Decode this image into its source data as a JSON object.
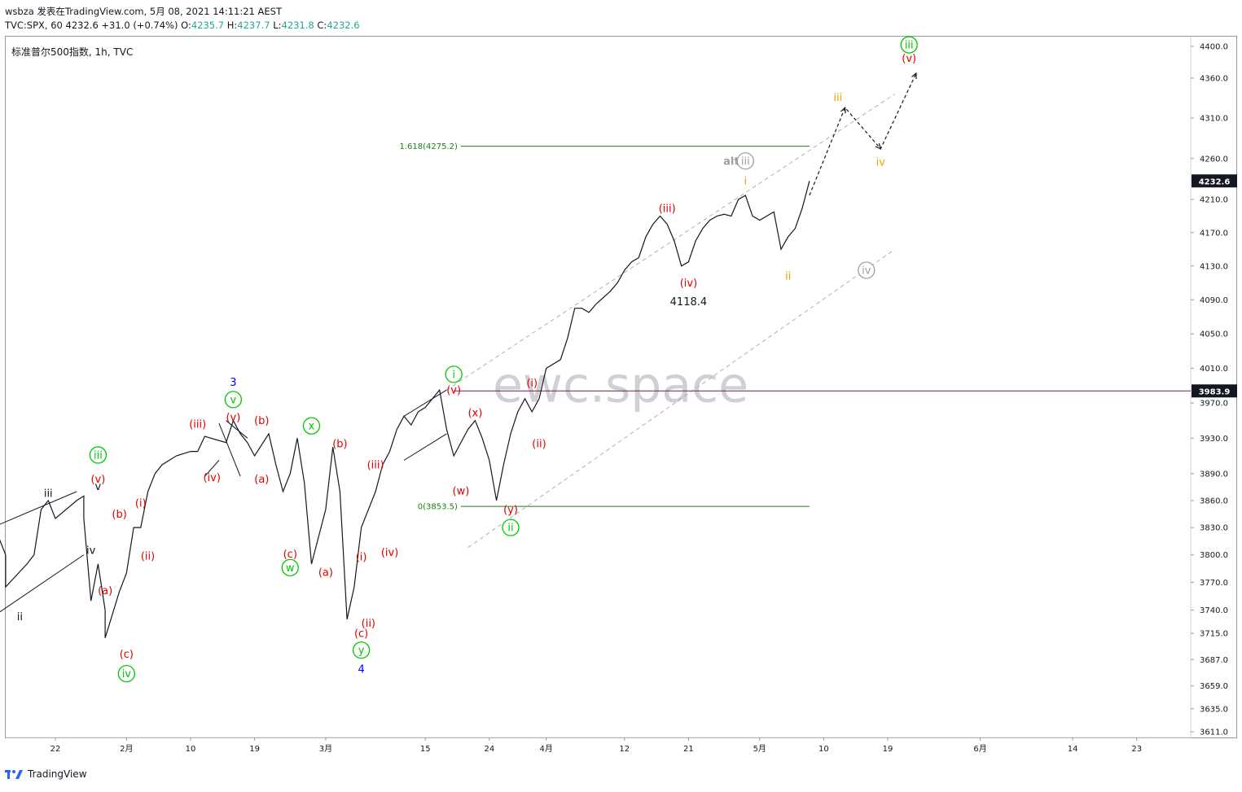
{
  "header": {
    "line1": "wsbza 发表在TradingView.com, 5月 08, 2021 14:11:21 AEST",
    "symbol_interval": "TVC:SPX, 60",
    "last": "4232.6",
    "change": "+31.0 (+0.74%)",
    "o_label": "O:",
    "o_value": "4235.7",
    "h_label": "H:",
    "h_value": "4237.7",
    "l_label": "L:",
    "l_value": "4231.8",
    "c_label": "C:",
    "c_value": "4232.6"
  },
  "legend": "标准普尔500指数, 1h, TVC",
  "watermark": "ewc.space",
  "footer": {
    "brand": "TradingView"
  },
  "colors": {
    "green": "#00c800",
    "red": "#e00000",
    "blue": "#0000ff",
    "orange": "#f0a000",
    "gray": "#a0a0a0",
    "dark": "#131722",
    "fib": "#1b7d1b",
    "level": "#7b1a4b"
  },
  "chart_data": {
    "type": "line",
    "title": "",
    "xlabel": "",
    "ylabel": "",
    "ylim": [
      3590,
      4420
    ],
    "grid": false,
    "y_ticks": [
      3611.0,
      3635.0,
      3659.0,
      3687.0,
      3715.0,
      3740.0,
      3770.0,
      3800.0,
      3830.0,
      3860.0,
      3890.0,
      3930.0,
      3970.0,
      4010.0,
      4050.0,
      4090.0,
      4130.0,
      4170.0,
      4210.0,
      4260.0,
      4310.0,
      4360.0,
      4400.0
    ],
    "x_ticks": [
      "22",
      "2月",
      "10",
      "19",
      "3月",
      "15",
      "24",
      "4月",
      "12",
      "21",
      "5月",
      "10",
      "19",
      "6月",
      "14",
      "23"
    ],
    "price_badges": [
      {
        "value": "4232.6",
        "price": 4232.6,
        "bg": "#131722"
      },
      {
        "value": "3983.9",
        "price": 3983.9,
        "bg": "#131722"
      }
    ],
    "horizontal_levels": [
      {
        "label": "1.618(4275.2)",
        "price": 4275.2,
        "color": "#1b7d1b"
      },
      {
        "label": "0(3853.5)",
        "price": 3853.5,
        "color": "#1b7d1b"
      },
      {
        "label": "",
        "price": 3983.9,
        "color": "#7b1a4b"
      }
    ],
    "price_path": [
      [
        "01-14",
        3820
      ],
      [
        "01-15",
        3800
      ],
      [
        "01-15",
        3765
      ],
      [
        "01-18",
        3790
      ],
      [
        "01-19",
        3800
      ],
      [
        "01-20",
        3850
      ],
      [
        "01-21",
        3860
      ],
      [
        "01-22",
        3840
      ],
      [
        "01-25",
        3860
      ],
      [
        "01-26",
        3865
      ],
      [
        "01-26",
        3840
      ],
      [
        "01-27",
        3750
      ],
      [
        "01-28",
        3790
      ],
      [
        "01-29",
        3740
      ],
      [
        "01-29",
        3710
      ],
      [
        "01-31",
        3760
      ],
      [
        "02-01",
        3780
      ],
      [
        "02-02",
        3830
      ],
      [
        "02-03",
        3830
      ],
      [
        "02-04",
        3870
      ],
      [
        "02-05",
        3890
      ],
      [
        "02-06",
        3900
      ],
      [
        "02-08",
        3910
      ],
      [
        "02-10",
        3915
      ],
      [
        "02-11",
        3915
      ],
      [
        "02-12",
        3932
      ],
      [
        "02-15",
        3925
      ],
      [
        "02-16",
        3950
      ],
      [
        "02-17",
        3935
      ],
      [
        "02-18",
        3925
      ],
      [
        "02-19",
        3910
      ],
      [
        "02-21",
        3935
      ],
      [
        "02-22",
        3900
      ],
      [
        "02-23",
        3870
      ],
      [
        "02-24",
        3890
      ],
      [
        "02-25",
        3930
      ],
      [
        "02-26",
        3880
      ],
      [
        "02-27",
        3790
      ],
      [
        "03-01",
        3850
      ],
      [
        "03-02",
        3920
      ],
      [
        "03-03",
        3870
      ],
      [
        "03-04",
        3730
      ],
      [
        "03-05",
        3765
      ],
      [
        "03-06",
        3830
      ],
      [
        "03-08",
        3870
      ],
      [
        "03-09",
        3900
      ],
      [
        "03-10",
        3915
      ],
      [
        "03-11",
        3940
      ],
      [
        "03-12",
        3955
      ],
      [
        "03-13",
        3945
      ],
      [
        "03-14",
        3960
      ],
      [
        "03-15",
        3965
      ],
      [
        "03-16",
        3975
      ],
      [
        "03-17",
        3985
      ],
      [
        "03-18",
        3940
      ],
      [
        "03-19",
        3910
      ],
      [
        "03-21",
        3940
      ],
      [
        "03-22",
        3950
      ],
      [
        "03-23",
        3930
      ],
      [
        "03-24",
        3905
      ],
      [
        "03-25",
        3860
      ],
      [
        "03-26",
        3900
      ],
      [
        "03-27",
        3935
      ],
      [
        "03-28",
        3960
      ],
      [
        "03-29",
        3975
      ],
      [
        "03-30",
        3960
      ],
      [
        "03-31",
        3975
      ],
      [
        "04-01",
        4010
      ],
      [
        "04-03",
        4020
      ],
      [
        "04-04",
        4045
      ],
      [
        "04-05",
        4080
      ],
      [
        "04-06",
        4080
      ],
      [
        "04-07",
        4075
      ],
      [
        "04-08",
        4085
      ],
      [
        "04-10",
        4100
      ],
      [
        "04-11",
        4110
      ],
      [
        "04-12",
        4125
      ],
      [
        "04-13",
        4135
      ],
      [
        "04-14",
        4140
      ],
      [
        "04-15",
        4165
      ],
      [
        "04-16",
        4180
      ],
      [
        "04-17",
        4190
      ],
      [
        "04-18",
        4180
      ],
      [
        "04-19",
        4160
      ],
      [
        "04-20",
        4130
      ],
      [
        "04-21",
        4135
      ],
      [
        "04-22",
        4160
      ],
      [
        "04-23",
        4175
      ],
      [
        "04-24",
        4185
      ],
      [
        "04-25",
        4190
      ],
      [
        "04-26",
        4192
      ],
      [
        "04-27",
        4190
      ],
      [
        "04-28",
        4210
      ],
      [
        "04-29",
        4215
      ],
      [
        "04-30",
        4190
      ],
      [
        "05-01",
        4185
      ],
      [
        "05-02",
        4190
      ],
      [
        "05-03",
        4195
      ],
      [
        "05-04",
        4150
      ],
      [
        "05-05",
        4165
      ],
      [
        "05-06",
        4175
      ],
      [
        "05-07",
        4200
      ],
      [
        "05-08",
        4232.6
      ]
    ],
    "projection": [
      [
        "05-08",
        4215
      ],
      [
        "05-13",
        4323
      ],
      [
        "05-18",
        4272
      ],
      [
        "05-23",
        4366
      ]
    ],
    "annotations": [
      {
        "text": "ii",
        "date": "01-17",
        "price": 3733,
        "color": "#131722"
      },
      {
        "text": "iii",
        "date": "01-21",
        "price": 3868,
        "color": "#131722"
      },
      {
        "text": "iv",
        "date": "01-27",
        "price": 3805,
        "color": "#131722"
      },
      {
        "text": "v",
        "date": "01-28",
        "price": 3876,
        "color": "#131722"
      },
      {
        "text": "iii",
        "date": "01-28",
        "price": 3911,
        "color": "#00c800",
        "circle": true
      },
      {
        "text": "(v)",
        "date": "01-28",
        "price": 3884,
        "color": "#e00000"
      },
      {
        "text": "(b)",
        "date": "01-31",
        "price": 3845,
        "color": "#e00000"
      },
      {
        "text": "(a)",
        "date": "01-29",
        "price": 3761,
        "color": "#e00000"
      },
      {
        "text": "(c)",
        "date": "02-01",
        "price": 3693,
        "color": "#e00000"
      },
      {
        "text": "iv",
        "date": "02-01",
        "price": 3672,
        "color": "#00c800",
        "circle": true
      },
      {
        "text": "(i)",
        "date": "02-03",
        "price": 3857,
        "color": "#e00000"
      },
      {
        "text": "(ii)",
        "date": "02-04",
        "price": 3799,
        "color": "#e00000"
      },
      {
        "text": "(iii)",
        "date": "02-11",
        "price": 3946,
        "color": "#e00000"
      },
      {
        "text": "(iv)",
        "date": "02-13",
        "price": 3886,
        "color": "#e00000"
      },
      {
        "text": "3",
        "date": "02-16",
        "price": 3994,
        "color": "#0000ff"
      },
      {
        "text": "v",
        "date": "02-16",
        "price": 3974,
        "color": "#00c800",
        "circle": true
      },
      {
        "text": "(v)",
        "date": "02-16",
        "price": 3954,
        "color": "#e00000"
      },
      {
        "text": "(b)",
        "date": "02-20",
        "price": 3950,
        "color": "#e00000"
      },
      {
        "text": "(a)",
        "date": "02-20",
        "price": 3884,
        "color": "#e00000"
      },
      {
        "text": "x",
        "date": "02-27",
        "price": 3944,
        "color": "#00c800",
        "circle": true
      },
      {
        "text": "(c)",
        "date": "02-24",
        "price": 3801,
        "color": "#e00000"
      },
      {
        "text": "w",
        "date": "02-24",
        "price": 3786,
        "color": "#00c800",
        "circle": true
      },
      {
        "text": "(b)",
        "date": "03-03",
        "price": 3924,
        "color": "#e00000"
      },
      {
        "text": "(a)",
        "date": "03-01",
        "price": 3781,
        "color": "#e00000"
      },
      {
        "text": "(iii)",
        "date": "03-08",
        "price": 3900,
        "color": "#e00000"
      },
      {
        "text": "(iv)",
        "date": "03-10",
        "price": 3803,
        "color": "#e00000"
      },
      {
        "text": "(i)",
        "date": "03-06",
        "price": 3798,
        "color": "#e00000"
      },
      {
        "text": "(ii)",
        "date": "03-07",
        "price": 3726,
        "color": "#e00000"
      },
      {
        "text": "(c)",
        "date": "03-06",
        "price": 3715,
        "color": "#e00000"
      },
      {
        "text": "y",
        "date": "03-06",
        "price": 3697,
        "color": "#00c800",
        "circle": true
      },
      {
        "text": "4",
        "date": "03-06",
        "price": 3677,
        "color": "#0000ff"
      },
      {
        "text": "i",
        "date": "03-19",
        "price": 4003,
        "color": "#00c800",
        "circle": true
      },
      {
        "text": "(v)",
        "date": "03-19",
        "price": 3985,
        "color": "#e00000"
      },
      {
        "text": "(x)",
        "date": "03-22",
        "price": 3959,
        "color": "#e00000"
      },
      {
        "text": "(w)",
        "date": "03-20",
        "price": 3871,
        "color": "#e00000"
      },
      {
        "text": "(y)",
        "date": "03-27",
        "price": 3850,
        "color": "#e00000"
      },
      {
        "text": "ii",
        "date": "03-27",
        "price": 3830,
        "color": "#00c800",
        "circle": true
      },
      {
        "text": "(i)",
        "date": "03-30",
        "price": 3993,
        "color": "#e00000"
      },
      {
        "text": "(ii)",
        "date": "03-31",
        "price": 3924,
        "color": "#e00000"
      },
      {
        "text": "(iii)",
        "date": "04-18",
        "price": 4199,
        "color": "#e00000"
      },
      {
        "text": "(iv)",
        "date": "04-21",
        "price": 4110,
        "color": "#e00000"
      },
      {
        "text": "4118.4",
        "date": "04-21",
        "price": 4088,
        "color": "#131722"
      },
      {
        "text": "alt",
        "date": "04-27",
        "price": 4257,
        "color": "#a0a0a0"
      },
      {
        "text": "iii",
        "date": "04-29",
        "price": 4257,
        "color": "#a0a0a0",
        "circle": true
      },
      {
        "text": "i",
        "date": "04-29",
        "price": 4233,
        "color": "#f0a000"
      },
      {
        "text": "ii",
        "date": "05-05",
        "price": 4118,
        "color": "#f0a000"
      },
      {
        "text": "iii",
        "date": "05-12",
        "price": 4336,
        "color": "#f0a000"
      },
      {
        "text": "iv",
        "date": "05-18",
        "price": 4256,
        "color": "#f0a000"
      },
      {
        "text": "iv",
        "date": "05-16",
        "price": 4125,
        "color": "#a0a0a0",
        "circle": true
      },
      {
        "text": "iii",
        "date": "05-22",
        "price": 4402,
        "color": "#00c800",
        "circle": true
      },
      {
        "text": "(v)",
        "date": "05-22",
        "price": 4385,
        "color": "#e00000"
      }
    ]
  }
}
